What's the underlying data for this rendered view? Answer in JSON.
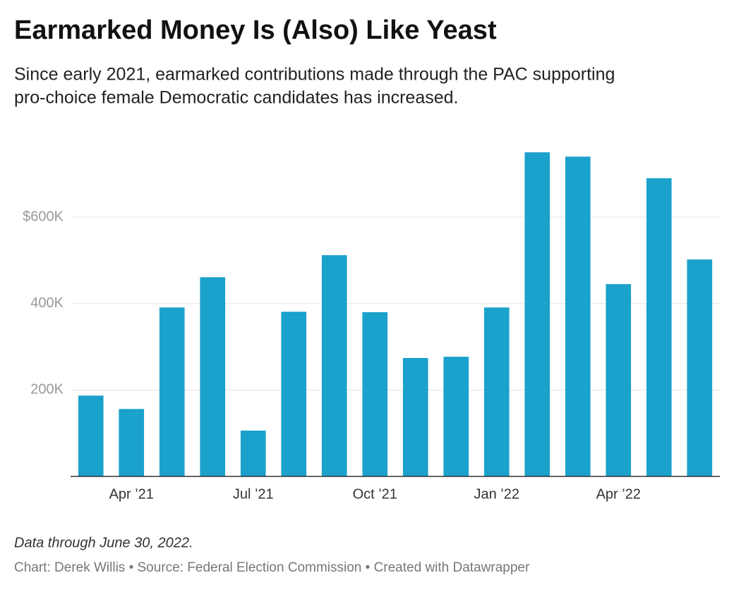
{
  "chart_data": {
    "type": "bar",
    "title": "Earmarked Money Is (Also) Like Yeast",
    "subtitle": [
      "Since early 2021, earmarked contributions made through the PAC supporting",
      "pro-choice female Democratic candidates has increased."
    ],
    "note": "Data through June 30, 2022.",
    "source": "Chart: Derek Willis • Source: Federal Election Commission • Created with Datawrapper",
    "categories": [
      null,
      "Apr ’21",
      null,
      null,
      "Jul ’21",
      null,
      null,
      "Oct ’21",
      null,
      null,
      "Jan ’22",
      null,
      null,
      "Apr ’22",
      null,
      null
    ],
    "values": [
      187000,
      156000,
      391000,
      461000,
      106000,
      381000,
      512000,
      380000,
      274000,
      277000,
      391000,
      750000,
      740000,
      445000,
      690000,
      502000
    ],
    "color": "#1aa1cc",
    "ylim": [
      0,
      760000
    ],
    "yticks": [
      {
        "value": 200000,
        "label": "200K"
      },
      {
        "value": 400000,
        "label": "400K"
      },
      {
        "value": 600000,
        "label": "$600K"
      }
    ],
    "grid": true
  }
}
